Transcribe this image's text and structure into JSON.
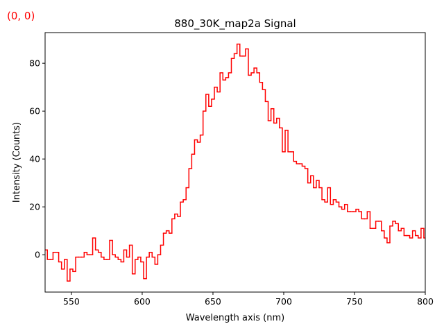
{
  "chart_data": {
    "type": "step",
    "title": "880_30K_map2a Signal",
    "annotation": "(0, 0)",
    "annotation_color": "#ff0000",
    "xlabel": "Wavelength axis (nm)",
    "ylabel": "Intensity (Counts)",
    "xlim": [
      531.4,
      800
    ],
    "ylim": [
      -15.6,
      92.8
    ],
    "xticks": [
      550,
      600,
      650,
      700,
      750,
      800
    ],
    "yticks": [
      0,
      20,
      40,
      60,
      80
    ],
    "grid": false,
    "series": [
      {
        "color": "#ff0000",
        "x": [
          532,
          534,
          536,
          538,
          540,
          542,
          544,
          546,
          548,
          550,
          552,
          554,
          556,
          558,
          560,
          562,
          564,
          566,
          568,
          570,
          572,
          574,
          576,
          578,
          580,
          582,
          584,
          586,
          588,
          590,
          592,
          594,
          596,
          598,
          600,
          602,
          604,
          606,
          608,
          610,
          612,
          614,
          616,
          618,
          620,
          622,
          624,
          626,
          628,
          630,
          632,
          634,
          636,
          638,
          640,
          642,
          644,
          646,
          648,
          650,
          652,
          654,
          656,
          658,
          660,
          662,
          664,
          666,
          668,
          670,
          672,
          674,
          676,
          678,
          680,
          682,
          684,
          686,
          688,
          690,
          692,
          694,
          696,
          698,
          700,
          702,
          704,
          706,
          708,
          710,
          712,
          714,
          716,
          718,
          720,
          722,
          724,
          726,
          728,
          730,
          732,
          734,
          736,
          738,
          740,
          742,
          744,
          746,
          748,
          750,
          752,
          754,
          756,
          758,
          760,
          762,
          764,
          766,
          768,
          770,
          772,
          774,
          776,
          778,
          780,
          782,
          784,
          786,
          788,
          790,
          792,
          794,
          796,
          798,
          800
        ],
        "values": [
          2,
          -2,
          -2,
          1,
          1,
          -3,
          -6,
          -2,
          -11,
          -6,
          -7,
          -1,
          -1,
          -1,
          1,
          0,
          0,
          7,
          2,
          1,
          -1,
          -2,
          -2,
          6,
          0,
          -1,
          -2,
          -3,
          2,
          -1,
          4,
          -8,
          -2,
          -1,
          -3,
          -10,
          -1,
          1,
          -1,
          -4,
          0,
          4,
          9,
          10,
          9,
          15,
          17,
          16,
          22,
          23,
          28,
          36,
          42,
          48,
          47,
          50,
          60,
          67,
          62,
          65,
          70,
          68,
          76,
          73,
          74,
          76,
          82,
          84,
          88,
          83,
          83,
          86,
          75,
          76,
          78,
          76,
          72,
          69,
          64,
          56,
          61,
          55,
          57,
          53,
          43,
          52,
          43,
          43,
          39,
          38,
          38,
          37,
          36,
          30,
          33,
          28,
          31,
          28,
          23,
          22,
          28,
          21,
          23,
          22,
          20,
          19,
          21,
          18,
          18,
          18,
          19,
          18,
          15,
          15,
          18,
          11,
          11,
          14,
          14,
          10,
          7,
          5,
          12,
          14,
          13,
          10,
          11,
          8,
          8,
          7,
          10,
          8,
          7,
          11,
          7
        ]
      }
    ]
  }
}
